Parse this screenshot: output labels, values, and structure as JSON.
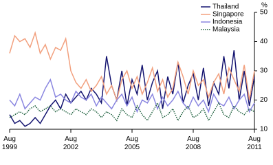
{
  "chart_data": {
    "type": "line",
    "y_label": "%",
    "x": [
      1999.583,
      1999.833,
      2000.083,
      2000.333,
      2000.583,
      2000.833,
      2001.083,
      2001.333,
      2001.583,
      2001.833,
      2002.083,
      2002.333,
      2002.583,
      2002.833,
      2003.083,
      2003.333,
      2003.583,
      2003.833,
      2004.083,
      2004.333,
      2004.583,
      2004.833,
      2005.083,
      2005.333,
      2005.583,
      2005.833,
      2006.083,
      2006.333,
      2006.583,
      2006.833,
      2007.083,
      2007.333,
      2007.583,
      2007.833,
      2008.083,
      2008.333,
      2008.583,
      2008.833,
      2009.083,
      2009.333,
      2009.583,
      2009.833,
      2010.083,
      2010.333,
      2010.583,
      2010.833,
      2011.083,
      2011.333,
      2011.583
    ],
    "series": [
      {
        "name": "Thailand",
        "color": "#141470",
        "dash": "none",
        "values": [
          15,
          12,
          13,
          11,
          12,
          14,
          12,
          15,
          18,
          20,
          17,
          22,
          19,
          21,
          23,
          20,
          24,
          22,
          19,
          35,
          25,
          20,
          30,
          18,
          27,
          22,
          32,
          20,
          26,
          30,
          17,
          28,
          22,
          33,
          19,
          25,
          29,
          20,
          31,
          18,
          26,
          22,
          35,
          24,
          37,
          20,
          30,
          18,
          28
        ]
      },
      {
        "name": "Singapore",
        "color": "#f2a07e",
        "dash": "none",
        "values": [
          36,
          42,
          40,
          41,
          38,
          43,
          36,
          39,
          34,
          38,
          37,
          41,
          30,
          26,
          24,
          27,
          23,
          25,
          28,
          22,
          25,
          20,
          27,
          30,
          24,
          28,
          22,
          26,
          31,
          23,
          27,
          21,
          24,
          33,
          28,
          22,
          30,
          25,
          27,
          21,
          26,
          29,
          22,
          31,
          27,
          23,
          32,
          20,
          30
        ]
      },
      {
        "name": "Indonesia",
        "color": "#8a86e0",
        "dash": "none",
        "values": [
          20,
          18,
          22,
          17,
          19,
          21,
          20,
          24,
          27,
          21,
          22,
          20,
          19,
          23,
          21,
          20,
          22,
          18,
          21,
          19,
          17,
          20,
          22,
          18,
          21,
          16,
          20,
          19,
          22,
          17,
          21,
          18,
          20,
          23,
          19,
          17,
          21,
          18,
          20,
          16,
          22,
          19,
          18,
          21,
          17,
          20,
          22,
          16,
          19
        ]
      },
      {
        "name": "Malaysia",
        "color": "#1b5e3b",
        "dash": "1.5 1.5",
        "values": [
          14,
          15,
          16,
          15,
          17,
          18,
          16,
          17,
          18,
          16,
          17,
          16,
          15,
          17,
          16,
          15,
          17,
          16,
          14,
          16,
          15,
          13,
          17,
          15,
          14,
          18,
          15,
          13,
          16,
          19,
          14,
          15,
          17,
          13,
          16,
          18,
          14,
          15,
          17,
          13,
          16,
          19,
          15,
          14,
          18,
          16,
          15,
          17,
          16
        ]
      }
    ],
    "xlim": [
      1999.583,
      2011.583
    ],
    "xticks": [
      {
        "value": 1999.583,
        "label": "Aug 1999"
      },
      {
        "value": 2002.583,
        "label": "Aug 2002"
      },
      {
        "value": 2005.583,
        "label": "Aug 2005"
      },
      {
        "value": 2008.583,
        "label": "Aug 2008"
      },
      {
        "value": 2011.583,
        "label": "Aug 2011"
      }
    ],
    "ylim": [
      10,
      50
    ],
    "yticks": [
      10,
      20,
      30,
      40,
      50
    ],
    "grid": false,
    "legend": "top-right"
  }
}
